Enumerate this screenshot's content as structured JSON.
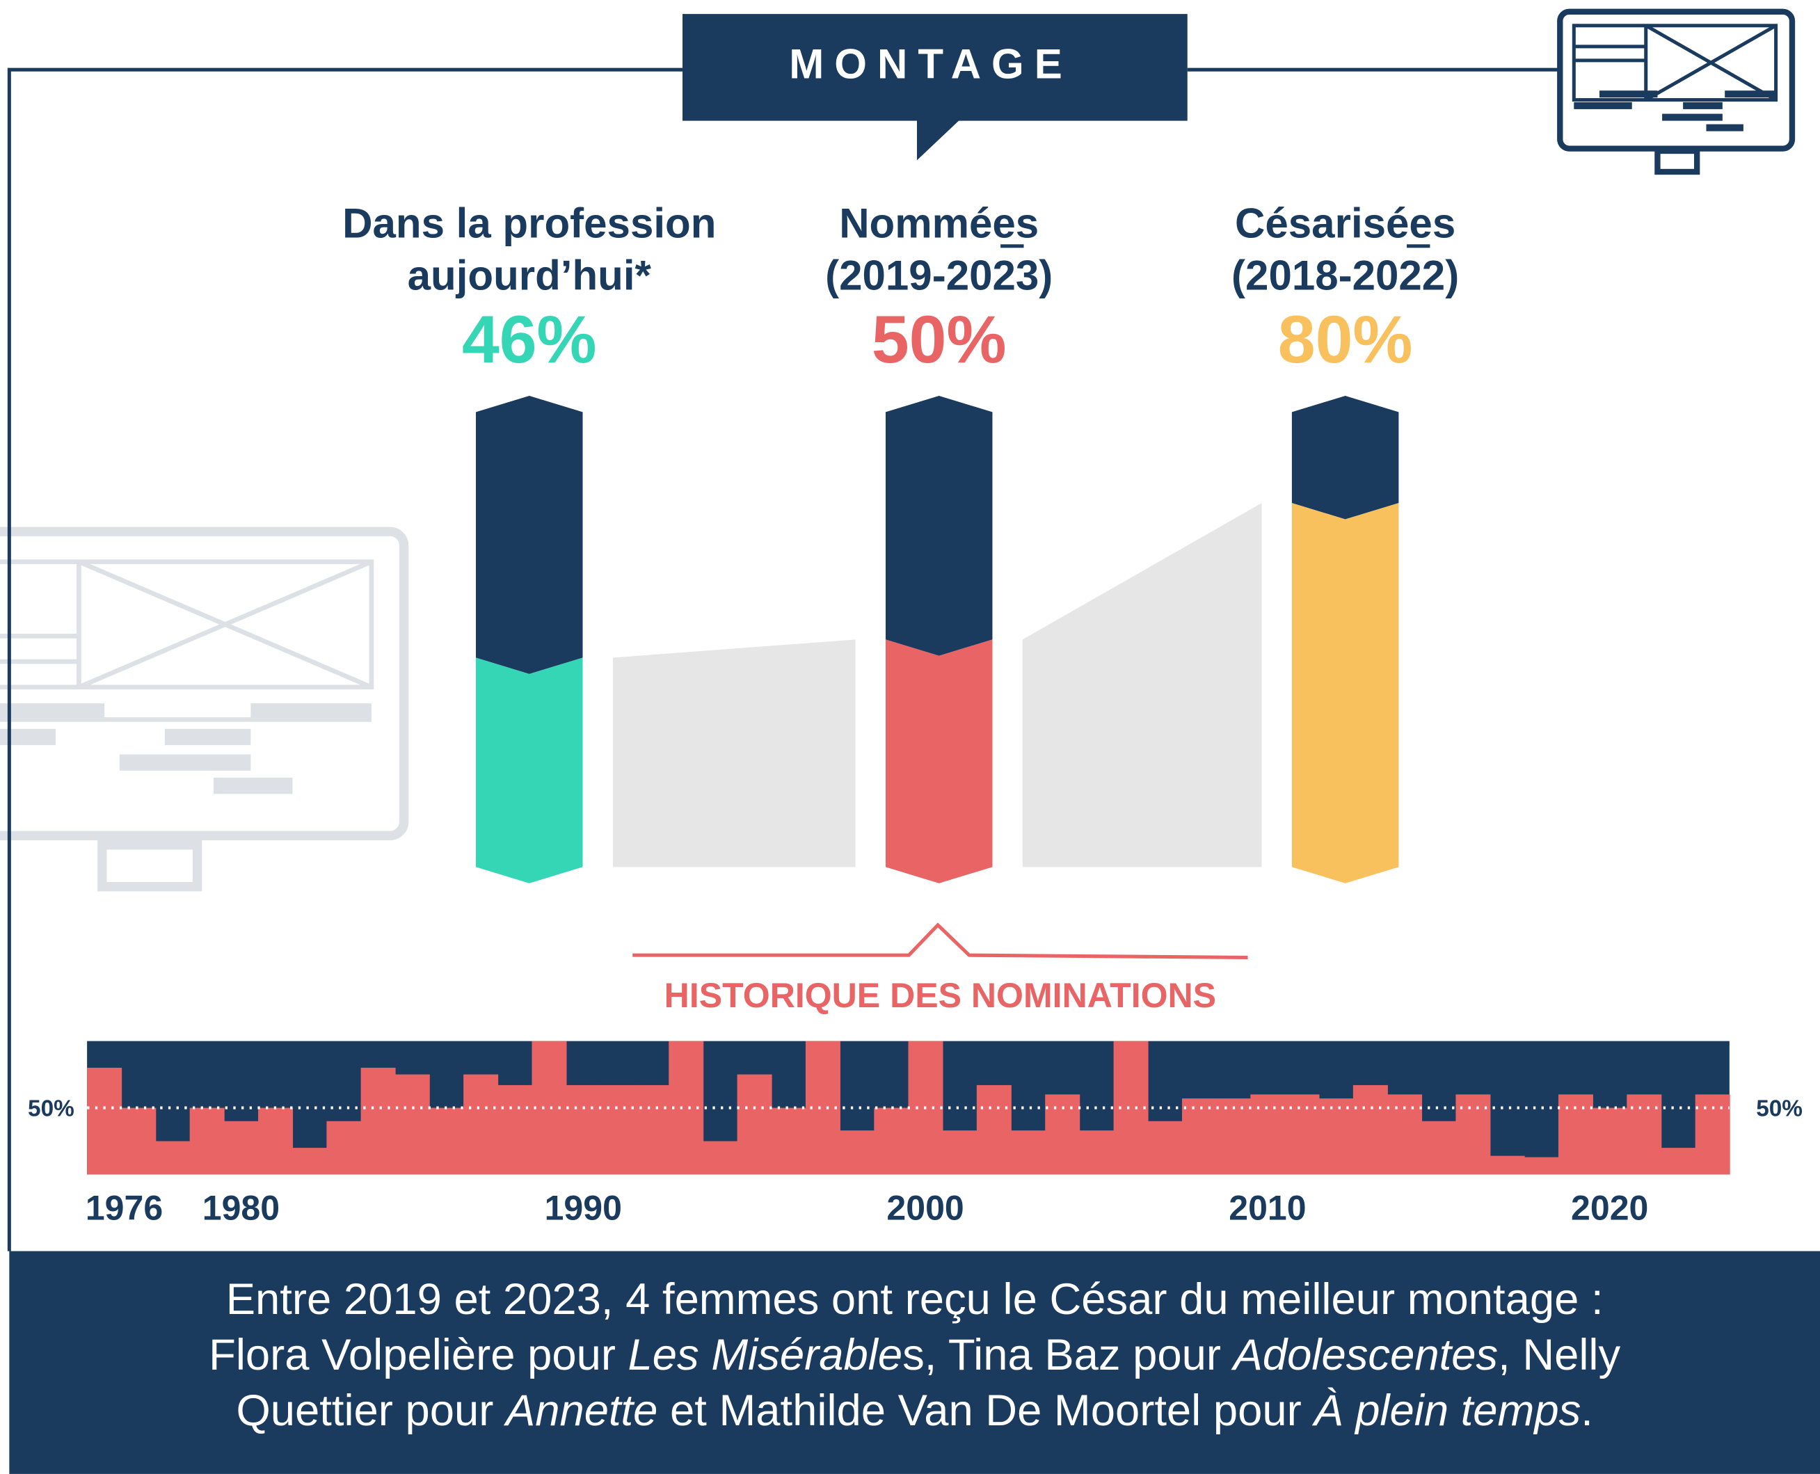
{
  "header": {
    "title": "MONTAGE"
  },
  "chart_data": [
    {
      "type": "gauge",
      "categories": [
        [
          "Dans la profession",
          "aujourd’hui*"
        ],
        [
          "Nommées",
          "(2019-2023)"
        ],
        [
          "Césarisées",
          "(2018-2022)"
        ]
      ],
      "values": [
        46,
        50,
        80
      ],
      "value_labels": [
        "46%",
        "50%",
        "80%"
      ],
      "colors": [
        "#35d6b5",
        "#e96464",
        "#f9c05e"
      ],
      "track_color": "#1a3a5e",
      "ylim": [
        0,
        100
      ]
    },
    {
      "type": "bar",
      "title": "HISTORIQUE DES NOMINATIONS",
      "x": [
        1976,
        1977,
        1978,
        1979,
        1980,
        1981,
        1982,
        1983,
        1984,
        1985,
        1986,
        1987,
        1988,
        1989,
        1990,
        1991,
        1992,
        1993,
        1994,
        1995,
        1996,
        1997,
        1998,
        1999,
        2000,
        2001,
        2002,
        2003,
        2004,
        2005,
        2006,
        2007,
        2008,
        2009,
        2010,
        2011,
        2012,
        2013,
        2014,
        2015,
        2016,
        2017,
        2018,
        2019,
        2020,
        2021,
        2022,
        2023
      ],
      "values": [
        80,
        50,
        25,
        50,
        40,
        50,
        20,
        40,
        80,
        75,
        50,
        75,
        67,
        100,
        67,
        67,
        67,
        100,
        25,
        75,
        50,
        100,
        33,
        50,
        100,
        33,
        67,
        33,
        60,
        33,
        100,
        40,
        57,
        57,
        60,
        60,
        57,
        67,
        60,
        40,
        60,
        14,
        13,
        60,
        50,
        60,
        20,
        60
      ],
      "xlim": [
        1976,
        2024
      ],
      "xticks": [
        1976,
        1980,
        1990,
        2000,
        2010,
        2020
      ],
      "ylim": [
        0,
        100
      ],
      "yticks": [
        {
          "value": 50,
          "label": "50%"
        }
      ],
      "color": "#e96464",
      "background": "#1a3a5e"
    }
  ],
  "footer": {
    "lines": [
      [
        {
          "text": "Entre 2019 et 2023, 4 femmes ont reçu le César du meilleur montage :"
        }
      ],
      [
        {
          "text": "Flora Volpelière pour "
        },
        {
          "text": "Les Misérable",
          "italic": true
        },
        {
          "text": "s, Tina Baz pour "
        },
        {
          "text": "Adolescentes",
          "italic": true
        },
        {
          "text": ", Nelly"
        }
      ],
      [
        {
          "text": "Quettier pour "
        },
        {
          "text": "Annette",
          "italic": true
        },
        {
          "text": " et Mathilde Van De Moortel pour "
        },
        {
          "text": "À plein temps",
          "italic": true
        },
        {
          "text": "."
        }
      ]
    ]
  }
}
